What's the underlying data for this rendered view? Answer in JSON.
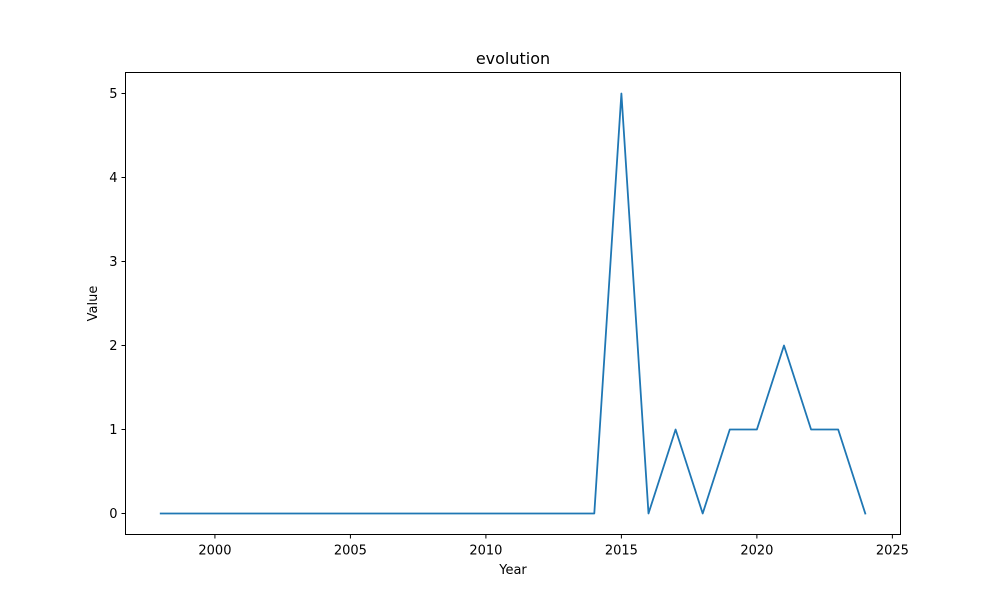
{
  "chart_data": {
    "type": "line",
    "title": "evolution",
    "xlabel": "Year",
    "ylabel": "Value",
    "xlim": [
      1996.7,
      2025.3
    ],
    "ylim": [
      -0.25,
      5.25
    ],
    "xticks": [
      2000,
      2005,
      2010,
      2015,
      2020,
      2025
    ],
    "yticks": [
      0,
      1,
      2,
      3,
      4,
      5
    ],
    "grid": false,
    "series": [
      {
        "color": "#1f77b4",
        "x": [
          1998,
          1999,
          2000,
          2001,
          2002,
          2003,
          2004,
          2005,
          2006,
          2007,
          2008,
          2009,
          2010,
          2011,
          2012,
          2013,
          2014,
          2015,
          2016,
          2017,
          2018,
          2019,
          2020,
          2021,
          2022,
          2023,
          2024
        ],
        "y": [
          0,
          0,
          0,
          0,
          0,
          0,
          0,
          0,
          0,
          0,
          0,
          0,
          0,
          0,
          0,
          0,
          0,
          5,
          0,
          1,
          0,
          1,
          1,
          2,
          1,
          1,
          0
        ]
      }
    ]
  }
}
